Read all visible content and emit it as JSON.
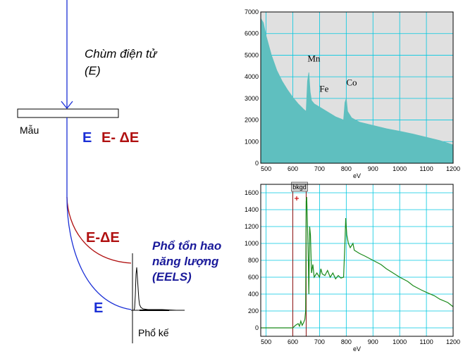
{
  "diagram": {
    "beam_label_line1": "Chùm điện tử",
    "beam_label_line2": "(E)",
    "sample_label": "Mẫu",
    "energy_E": "E",
    "energy_E_minus_dE": "E- ΔE",
    "path_E_minus_dE": "E-ΔE",
    "path_E": "E",
    "eels_line1": "Phổ tổn hao",
    "eels_line2": "năng lượng",
    "eels_line3": "(EELS)",
    "spectrometer_label": "Phổ kế",
    "colors": {
      "beam": "#1a2fd6",
      "loss_path": "#b01010",
      "eels_text": "#1a1a9a"
    }
  },
  "chart_data": [
    {
      "type": "area",
      "xlabel": "eV",
      "xlim": [
        480,
        1200
      ],
      "ylim": [
        0,
        7000
      ],
      "xticks": [
        500,
        600,
        700,
        800,
        900,
        1000,
        1100,
        1200
      ],
      "yticks": [
        0,
        1000,
        2000,
        3000,
        4000,
        5000,
        6000,
        7000
      ],
      "series_color": "#5fbfbf",
      "background": "#e0e0e0",
      "grid": true,
      "points": [
        [
          480,
          6700
        ],
        [
          490,
          6500
        ],
        [
          500,
          5900
        ],
        [
          520,
          5000
        ],
        [
          540,
          4300
        ],
        [
          560,
          3800
        ],
        [
          580,
          3400
        ],
        [
          600,
          3050
        ],
        [
          620,
          2750
        ],
        [
          640,
          2500
        ],
        [
          650,
          2400
        ],
        [
          655,
          3800
        ],
        [
          660,
          4200
        ],
        [
          665,
          3300
        ],
        [
          670,
          2900
        ],
        [
          680,
          2750
        ],
        [
          700,
          2600
        ],
        [
          720,
          2450
        ],
        [
          740,
          2300
        ],
        [
          760,
          2150
        ],
        [
          780,
          2050
        ],
        [
          790,
          2000
        ],
        [
          795,
          2800
        ],
        [
          800,
          3000
        ],
        [
          805,
          2400
        ],
        [
          820,
          2100
        ],
        [
          850,
          1900
        ],
        [
          900,
          1750
        ],
        [
          950,
          1600
        ],
        [
          1000,
          1480
        ],
        [
          1050,
          1350
        ],
        [
          1100,
          1200
        ],
        [
          1150,
          1050
        ],
        [
          1200,
          850
        ]
      ],
      "annotations": [
        {
          "text": "Mn",
          "x": 655,
          "y": 4700
        },
        {
          "text": "Fe",
          "x": 700,
          "y": 3300
        },
        {
          "text": "Co",
          "x": 800,
          "y": 3600
        }
      ]
    },
    {
      "type": "line",
      "xlabel": "eV",
      "xlim": [
        480,
        1200
      ],
      "ylim": [
        -100,
        1700
      ],
      "xticks": [
        500,
        600,
        700,
        800,
        900,
        1000,
        1100,
        1200
      ],
      "yticks": [
        0,
        200,
        400,
        600,
        800,
        1000,
        1200,
        1400,
        1600
      ],
      "series_color": "#1a8a1a",
      "background": "#ffffff",
      "grid": true,
      "bkgd_label": "bkgd",
      "bkgd_range": [
        600,
        650
      ],
      "points": [
        [
          480,
          0
        ],
        [
          500,
          0
        ],
        [
          520,
          0
        ],
        [
          540,
          0
        ],
        [
          560,
          0
        ],
        [
          580,
          0
        ],
        [
          600,
          0
        ],
        [
          610,
          30
        ],
        [
          620,
          50
        ],
        [
          625,
          20
        ],
        [
          630,
          80
        ],
        [
          635,
          30
        ],
        [
          640,
          60
        ],
        [
          645,
          100
        ],
        [
          648,
          200
        ],
        [
          650,
          1500
        ],
        [
          652,
          1550
        ],
        [
          655,
          1200
        ],
        [
          658,
          800
        ],
        [
          660,
          400
        ],
        [
          663,
          1200
        ],
        [
          666,
          1100
        ],
        [
          670,
          650
        ],
        [
          675,
          750
        ],
        [
          680,
          600
        ],
        [
          690,
          650
        ],
        [
          700,
          600
        ],
        [
          705,
          700
        ],
        [
          710,
          640
        ],
        [
          720,
          620
        ],
        [
          730,
          680
        ],
        [
          740,
          600
        ],
        [
          750,
          650
        ],
        [
          760,
          580
        ],
        [
          770,
          620
        ],
        [
          780,
          590
        ],
        [
          790,
          600
        ],
        [
          795,
          1000
        ],
        [
          798,
          1300
        ],
        [
          802,
          1100
        ],
        [
          808,
          1000
        ],
        [
          815,
          950
        ],
        [
          825,
          1000
        ],
        [
          830,
          920
        ],
        [
          850,
          880
        ],
        [
          870,
          850
        ],
        [
          900,
          800
        ],
        [
          930,
          750
        ],
        [
          950,
          700
        ],
        [
          970,
          660
        ],
        [
          1000,
          600
        ],
        [
          1030,
          550
        ],
        [
          1050,
          500
        ],
        [
          1080,
          450
        ],
        [
          1100,
          420
        ],
        [
          1130,
          380
        ],
        [
          1150,
          340
        ],
        [
          1180,
          300
        ],
        [
          1200,
          250
        ]
      ]
    }
  ]
}
